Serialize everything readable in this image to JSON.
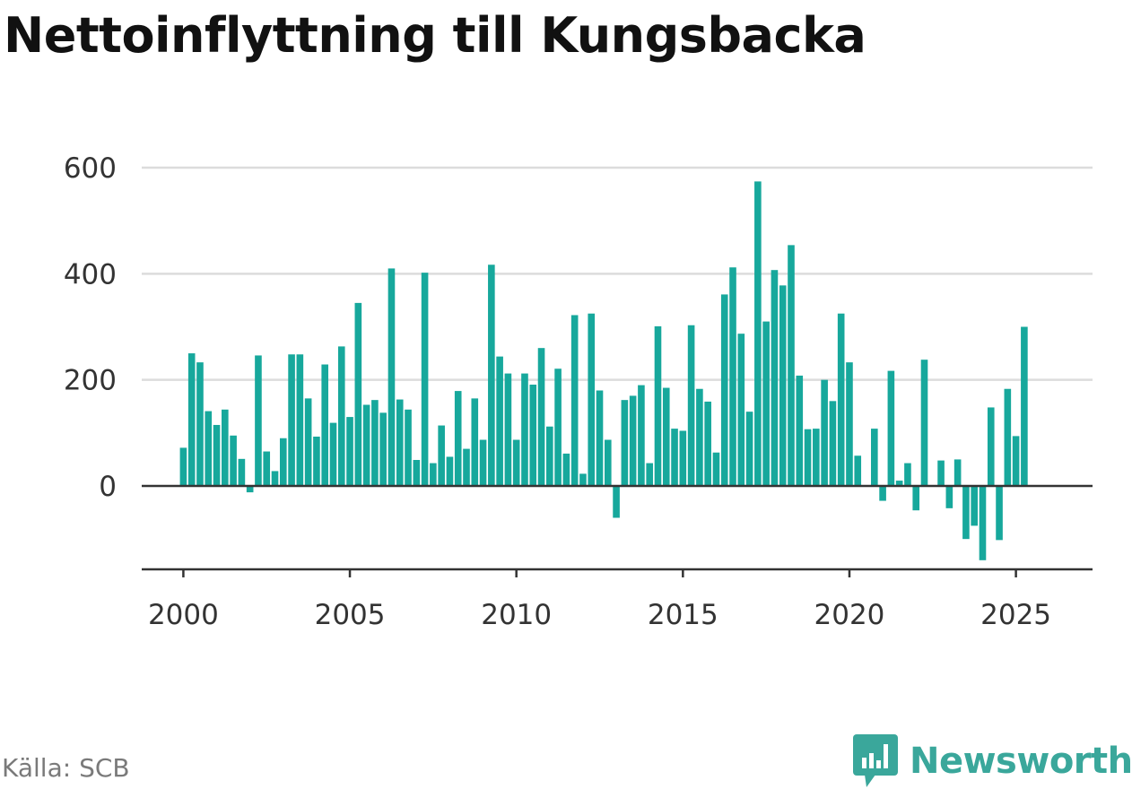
{
  "title": "Nettoinflyttning till Kungsbacka",
  "source": "Källa: SCB",
  "brand": {
    "name": "Newsworthy",
    "color": "#3aa79b",
    "icon": "bar-chart-speech-bubble-icon"
  },
  "colors": {
    "bar": "#17a89c",
    "grid": "#dcdcdc",
    "axis": "#333333"
  },
  "chart_data": {
    "type": "bar",
    "title": "Nettoinflyttning till Kungsbacka",
    "xlabel": "",
    "ylabel": "",
    "ylim": [
      -160,
      620
    ],
    "yticks": [
      0,
      200,
      400,
      600
    ],
    "xticks": [
      2000,
      2005,
      2010,
      2015,
      2020,
      2025
    ],
    "xlim": [
      1998.75,
      2027.3
    ],
    "grid": true,
    "legend": "none",
    "start_year": 2000,
    "periods_per_year": 4,
    "values": [
      72,
      250,
      233,
      141,
      115,
      144,
      95,
      51,
      -12,
      246,
      65,
      28,
      90,
      248,
      248,
      165,
      93,
      229,
      119,
      263,
      130,
      345,
      153,
      162,
      138,
      410,
      163,
      144,
      49,
      402,
      43,
      114,
      55,
      179,
      70,
      165,
      87,
      417,
      244,
      212,
      87,
      212,
      191,
      260,
      112,
      221,
      61,
      322,
      23,
      325,
      180,
      87,
      -60,
      162,
      170,
      190,
      43,
      301,
      185,
      108,
      104,
      303,
      183,
      159,
      63,
      361,
      412,
      287,
      140,
      574,
      310,
      407,
      378,
      454,
      208,
      107,
      108,
      200,
      160,
      325,
      233,
      57,
      0,
      108,
      -28,
      217,
      10,
      43,
      -46,
      238,
      0,
      48,
      -42,
      50,
      -100,
      -75,
      -140,
      148,
      -102,
      183,
      94,
      300
    ]
  }
}
